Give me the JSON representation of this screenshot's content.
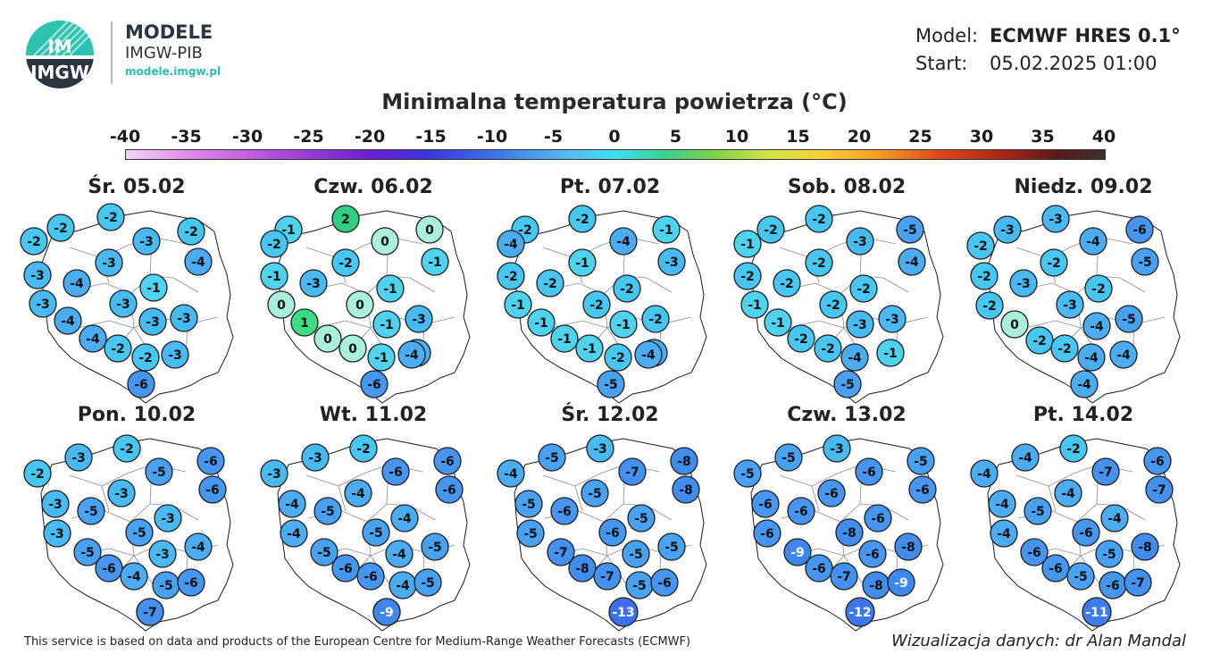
{
  "header": {
    "logo_text": "IMGW",
    "brand_name": "MODELE",
    "brand_org": "IMGW-PIB",
    "brand_url": "modele.imgw.pl",
    "model_label": "Model:",
    "model_value": "ECMWF HRES 0.1°",
    "start_label": "Start:",
    "start_value": "05.02.2025 01:00"
  },
  "title": "Minimalna temperatura powietrza (°C)",
  "colorbar": {
    "min": -40,
    "max": 40,
    "ticks": [
      "-40",
      "-35",
      "-30",
      "-25",
      "-20",
      "-15",
      "-10",
      "-5",
      "0",
      "5",
      "10",
      "15",
      "20",
      "25",
      "30",
      "35",
      "40"
    ]
  },
  "colors": {
    "border": "#1a1a1a",
    "land": "#ffffff"
  },
  "days": [
    {
      "label": "Śr. 05.02",
      "values": [
        -2,
        -2,
        -2,
        -3,
        -2,
        -4,
        -3,
        -4,
        -3,
        -1,
        -3,
        -3,
        -3,
        -4,
        -3,
        -4,
        -2,
        -2,
        -3,
        -6
      ]
    },
    {
      "label": "Czw. 06.02",
      "values": [
        -1,
        2,
        0,
        0,
        -1,
        -2,
        -1,
        -3,
        -2,
        -1,
        0,
        0,
        -1,
        -3,
        -4,
        1,
        0,
        0,
        -1,
        -4,
        -6
      ]
    },
    {
      "label": "Pt. 07.02",
      "values": [
        -2,
        -2,
        -4,
        -1,
        -3,
        -4,
        -2,
        -2,
        -1,
        -2,
        -1,
        -2,
        -1,
        -2,
        -4,
        -1,
        -1,
        -1,
        -2,
        -4,
        -5
      ]
    },
    {
      "label": "Sob. 08.02",
      "values": [
        -2,
        -2,
        -5,
        -1,
        -3,
        -4,
        -2,
        -2,
        -2,
        -2,
        -1,
        -2,
        -3,
        -3,
        -1,
        -1,
        -2,
        -2,
        -4,
        -5
      ]
    },
    {
      "label": "Niedz. 09.02",
      "values": [
        -3,
        -3,
        -6,
        -2,
        -4,
        -5,
        -2,
        -3,
        -2,
        -2,
        -3,
        -2,
        0,
        -4,
        -5,
        -2,
        -2,
        -4,
        -4,
        -4
      ]
    },
    {
      "label": "Pon. 10.02",
      "values": [
        -3,
        -2,
        -6,
        -2,
        -5,
        -6,
        -3,
        -5,
        -3,
        -3,
        -5,
        -3,
        -5,
        -3,
        -4,
        -6,
        -4,
        -5,
        -6,
        -5,
        -7
      ]
    },
    {
      "label": "Wt. 11.02",
      "values": [
        -3,
        -2,
        -6,
        -3,
        -6,
        -6,
        -4,
        -5,
        -4,
        -4,
        -5,
        -4,
        -5,
        -4,
        -5,
        -6,
        -6,
        -4,
        -5,
        -6,
        -9
      ]
    },
    {
      "label": "Śr. 12.02",
      "values": [
        -5,
        -3,
        -8,
        -4,
        -7,
        -8,
        -5,
        -6,
        -5,
        -5,
        -6,
        -5,
        -7,
        -5,
        -5,
        -8,
        -7,
        -5,
        -6,
        -7,
        -13
      ]
    },
    {
      "label": "Czw. 13.02",
      "values": [
        -5,
        -3,
        -5,
        -5,
        -6,
        -6,
        -6,
        -6,
        -6,
        -6,
        -8,
        -6,
        -9,
        -6,
        -8,
        -6,
        -7,
        -8,
        -9,
        -12
      ]
    },
    {
      "label": "Pt. 14.02",
      "values": [
        -4,
        -2,
        -6,
        -4,
        -7,
        -7,
        -4,
        -5,
        -4,
        -4,
        -6,
        -4,
        -6,
        -5,
        -8,
        -6,
        -5,
        -6,
        -7,
        -11
      ]
    }
  ],
  "footer": {
    "attribution": "This service is based on data and products of the European Centre for Medium-Range Weather Forecasts (ECMWF)",
    "credit": "Wizualizacja danych: dr Alan Mandal"
  }
}
